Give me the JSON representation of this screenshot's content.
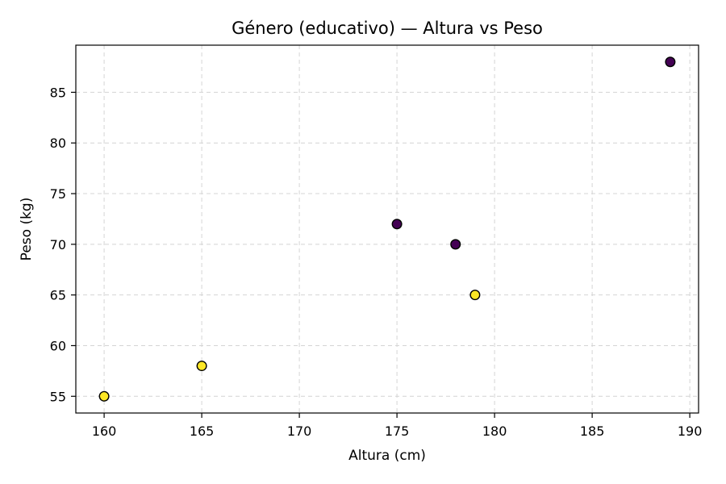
{
  "chart_data": {
    "type": "scatter",
    "title": "Género (educativo) — Altura vs Peso",
    "xlabel": "Altura (cm)",
    "ylabel": "Peso (kg)",
    "xlim": [
      158.55,
      190.45
    ],
    "ylim": [
      53.35,
      89.65
    ],
    "xticks": [
      160,
      165,
      170,
      175,
      180,
      185,
      190
    ],
    "yticks": [
      55,
      60,
      65,
      70,
      75,
      80,
      85
    ],
    "grid": true,
    "points": [
      {
        "x": 160,
        "y": 55,
        "color": "#fde725"
      },
      {
        "x": 165,
        "y": 58,
        "color": "#fde725"
      },
      {
        "x": 175,
        "y": 72,
        "color": "#440154"
      },
      {
        "x": 178,
        "y": 70,
        "color": "#440154"
      },
      {
        "x": 179,
        "y": 65,
        "color": "#fde725"
      },
      {
        "x": 189,
        "y": 88,
        "color": "#440154"
      }
    ]
  }
}
